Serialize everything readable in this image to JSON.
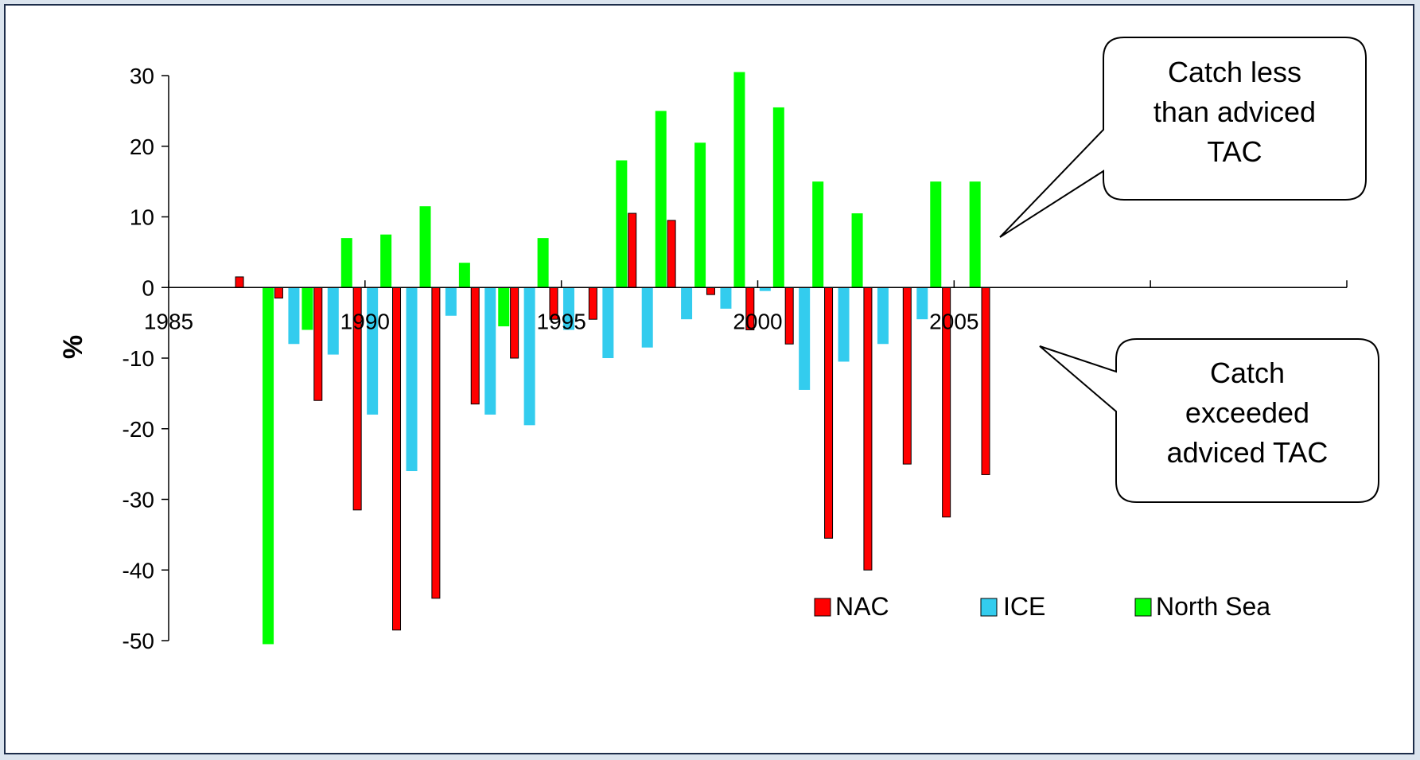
{
  "colors": {
    "NAC": "#ff0000",
    "ICE": "#33ccee",
    "North Sea": "#00ff00",
    "axis": "#000000",
    "callout_border": "#000000",
    "callout_fill": "#ffffff"
  },
  "chart_data": {
    "type": "bar",
    "title": "",
    "xlabel": "",
    "ylabel": "%",
    "ylim": [
      -50,
      30
    ],
    "yticks": [
      30,
      20,
      10,
      0,
      -10,
      -20,
      -30,
      -40,
      -50
    ],
    "xlim": [
      1985,
      2015
    ],
    "xtick_labels": [
      "1985",
      "1990",
      "1995",
      "2000",
      "2005"
    ],
    "legend_position": "bottom-right",
    "x": [
      1987,
      1988,
      1989,
      1990,
      1991,
      1992,
      1993,
      1994,
      1995,
      1996,
      1997,
      1998,
      1999,
      2000,
      2001,
      2002,
      2003,
      2004,
      2005,
      2006
    ],
    "series": [
      {
        "name": "NAC",
        "values": [
          1.5,
          -1.5,
          -16,
          -31.5,
          -48.5,
          -44,
          -16.5,
          -10,
          -4.5,
          -4.5,
          10.5,
          9.5,
          -1,
          -6,
          -8,
          -35.5,
          -40,
          -25,
          -32.5,
          -26.5
        ]
      },
      {
        "name": "ICE",
        "values": [
          null,
          -8,
          -9.5,
          -18,
          -26,
          -4,
          -18,
          -19.5,
          -6,
          -10,
          -8.5,
          -4.5,
          -3,
          -0.5,
          -14.5,
          -10.5,
          -8,
          -4.5,
          null,
          null
        ]
      },
      {
        "name": "North Sea",
        "values": [
          -50.5,
          -6,
          7,
          7.5,
          11.5,
          3.5,
          -5.5,
          7,
          null,
          18,
          25,
          20.5,
          30.5,
          25.5,
          15,
          10.5,
          null,
          15,
          15,
          null
        ]
      }
    ],
    "annotations": [
      "Catch less than adviced TAC",
      "Catch exceeded adviced TAC"
    ]
  },
  "callouts": {
    "top": {
      "line1": "Catch less",
      "line2": "than adviced",
      "line3": "TAC"
    },
    "bottom": {
      "line1": "Catch",
      "line2": "exceeded",
      "line3": "adviced TAC"
    }
  }
}
